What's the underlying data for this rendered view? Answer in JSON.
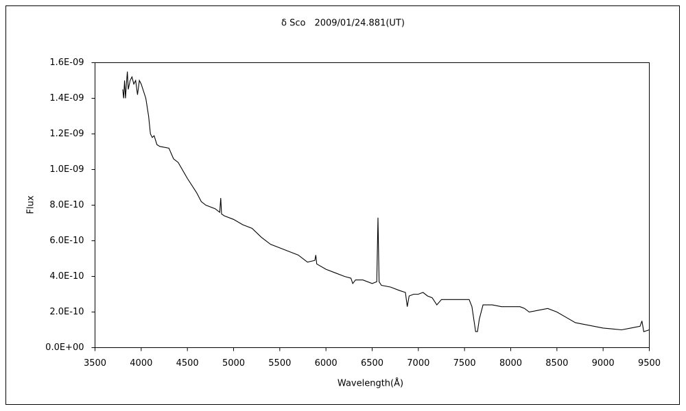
{
  "chart_data": {
    "type": "line",
    "title": "δ Sco　2009/01/24.881(UT)",
    "x_label": "Wavelength(Å)",
    "y_label": "Flux",
    "color": "#000000",
    "x": [
      3800,
      3810,
      3820,
      3830,
      3840,
      3850,
      3860,
      3880,
      3900,
      3920,
      3940,
      3960,
      3980,
      4000,
      4050,
      4080,
      4100,
      4120,
      4140,
      4170,
      4200,
      4300,
      4350,
      4400,
      4500,
      4600,
      4650,
      4700,
      4800,
      4850,
      4861,
      4870,
      4900,
      5000,
      5100,
      5200,
      5300,
      5400,
      5500,
      5600,
      5700,
      5800,
      5880,
      5890,
      5900,
      6000,
      6100,
      6200,
      6270,
      6290,
      6320,
      6400,
      6500,
      6550,
      6563,
      6575,
      6600,
      6700,
      6800,
      6860,
      6880,
      6900,
      6950,
      7000,
      7050,
      7100,
      7150,
      7200,
      7250,
      7300,
      7400,
      7500,
      7550,
      7580,
      7620,
      7640,
      7660,
      7700,
      7800,
      7900,
      8000,
      8100,
      8150,
      8200,
      8300,
      8400,
      8500,
      8600,
      8700,
      8800,
      8900,
      9000,
      9100,
      9200,
      9300,
      9400,
      9420,
      9440,
      9500
    ],
    "values": [
      1.45e-09,
      1.4e-09,
      1.5e-09,
      1.4e-09,
      1.48e-09,
      1.55e-09,
      1.45e-09,
      1.5e-09,
      1.52e-09,
      1.48e-09,
      1.5e-09,
      1.42e-09,
      1.5e-09,
      1.48e-09,
      1.4e-09,
      1.3e-09,
      1.2e-09,
      1.18e-09,
      1.19e-09,
      1.14e-09,
      1.13e-09,
      1.12e-09,
      1.06e-09,
      1.04e-09,
      9.5e-10,
      8.7e-10,
      8.2e-10,
      8e-10,
      7.8e-10,
      7.6e-10,
      8.4e-10,
      7.5e-10,
      7.4e-10,
      7.2e-10,
      6.9e-10,
      6.7e-10,
      6.2e-10,
      5.8e-10,
      5.6e-10,
      5.4e-10,
      5.2e-10,
      4.8e-10,
      4.9e-10,
      5.2e-10,
      4.7e-10,
      4.4e-10,
      4.2e-10,
      4e-10,
      3.9e-10,
      3.6e-10,
      3.8e-10,
      3.8e-10,
      3.6e-10,
      3.7e-10,
      7.3e-10,
      3.7e-10,
      3.5e-10,
      3.4e-10,
      3.2e-10,
      3.1e-10,
      2.3e-10,
      2.9e-10,
      3e-10,
      3e-10,
      3.1e-10,
      2.9e-10,
      2.8e-10,
      2.4e-10,
      2.7e-10,
      2.7e-10,
      2.7e-10,
      2.7e-10,
      2.7e-10,
      2.3e-10,
      9e-11,
      9e-11,
      1.6e-10,
      2.4e-10,
      2.4e-10,
      2.3e-10,
      2.3e-10,
      2.3e-10,
      2.2e-10,
      2e-10,
      2.1e-10,
      2.2e-10,
      2e-10,
      1.7e-10,
      1.4e-10,
      1.3e-10,
      1.2e-10,
      1.1e-10,
      1.05e-10,
      1e-10,
      1.1e-10,
      1.2e-10,
      1.5e-10,
      9e-11,
      1e-10
    ],
    "xlim": [
      3500,
      9500
    ],
    "xticks": [
      3500,
      4000,
      4500,
      5000,
      5500,
      6000,
      6500,
      7000,
      7500,
      8000,
      8500,
      9000,
      9500
    ],
    "ylim": [
      0,
      1.6e-09
    ],
    "yticks": [
      {
        "value": 0,
        "label": "0.0E+00"
      },
      {
        "value": 2e-10,
        "label": "2.0E-10"
      },
      {
        "value": 4e-10,
        "label": "4.0E-10"
      },
      {
        "value": 6e-10,
        "label": "6.0E-10"
      },
      {
        "value": 8e-10,
        "label": "8.0E-10"
      },
      {
        "value": 1e-09,
        "label": "1.0E-09"
      },
      {
        "value": 1.2e-09,
        "label": "1.2E-09"
      },
      {
        "value": 1.4e-09,
        "label": "1.4E-09"
      },
      {
        "value": 1.6e-09,
        "label": "1.6E-09"
      }
    ]
  }
}
